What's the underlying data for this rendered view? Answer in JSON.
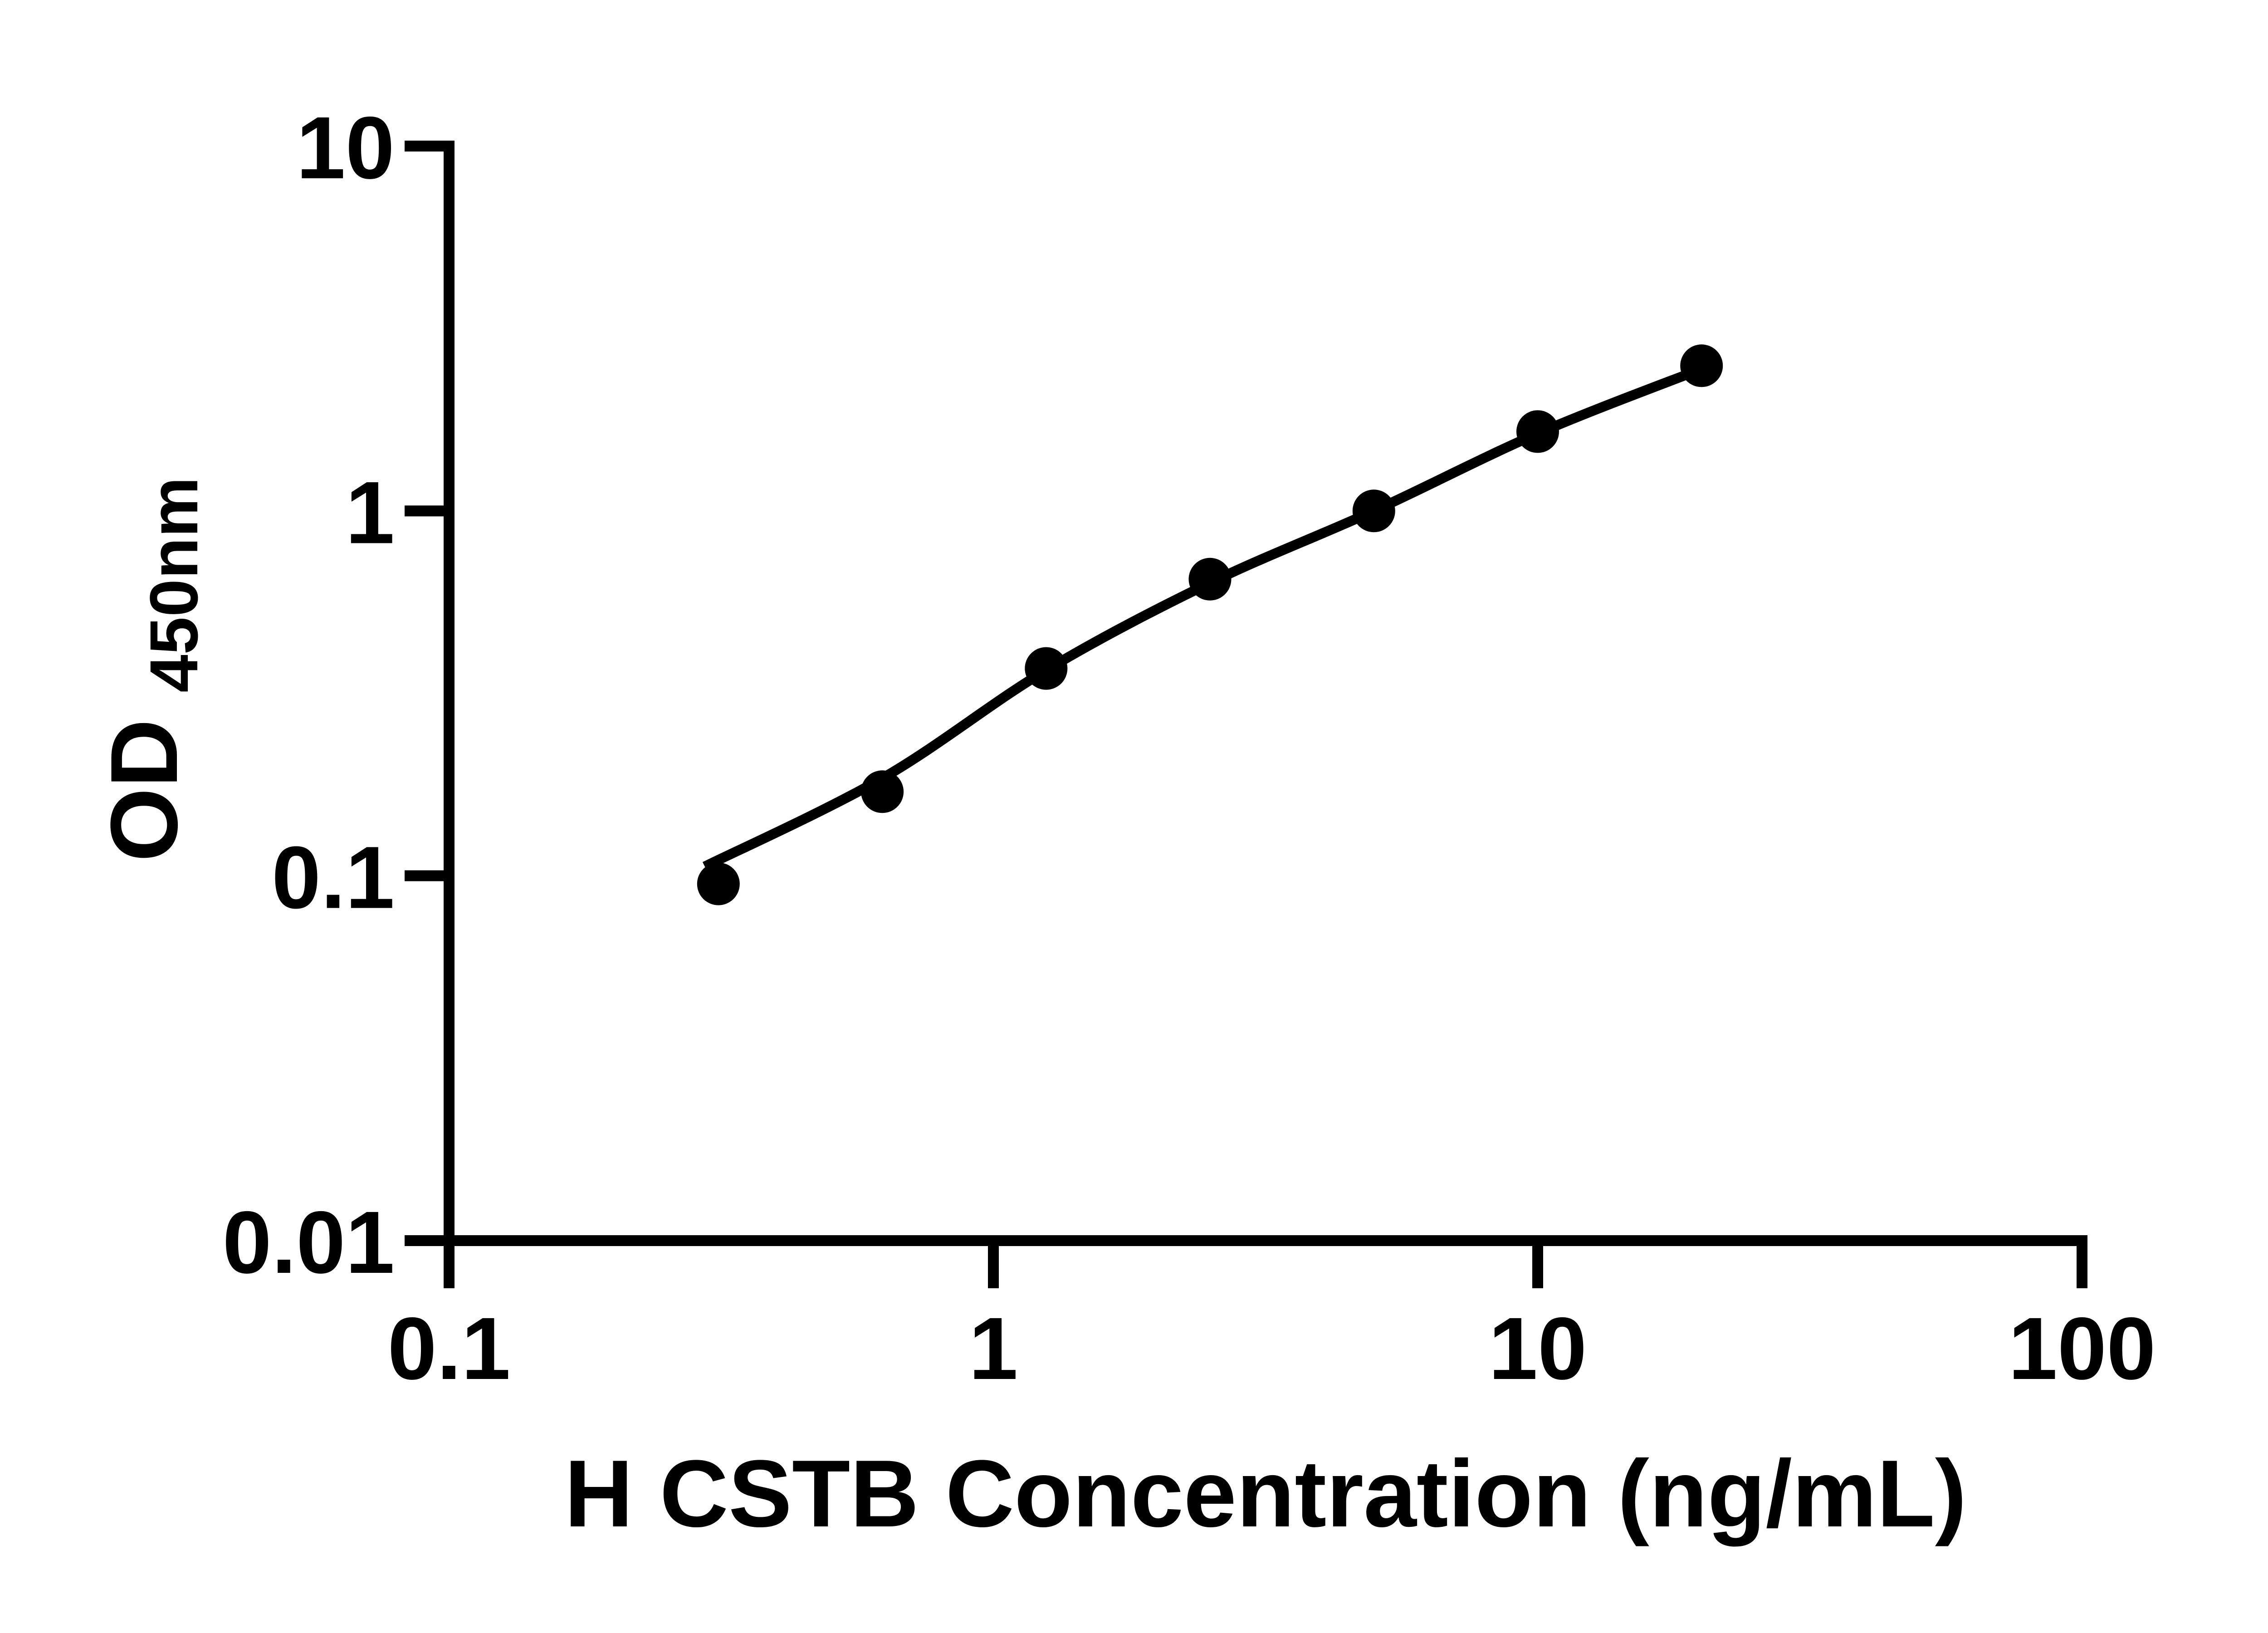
{
  "figure": {
    "background": "#ffffff",
    "ink_color": "#000000"
  },
  "chart_data": {
    "type": "scatter",
    "title": "",
    "xlabel": "H CSTB Concentration (ng/mL)",
    "ylabel_main": "OD",
    "ylabel_subscript": "450nm",
    "x_scale": "log",
    "y_scale": "log",
    "xlim": [
      0.1,
      100
    ],
    "ylim": [
      0.01,
      10
    ],
    "x_tick_values": [
      0.1,
      1,
      10,
      100
    ],
    "x_tick_labels": [
      "0.1",
      "1",
      "10",
      "100"
    ],
    "y_tick_values": [
      0.01,
      0.1,
      1,
      10
    ],
    "y_tick_labels": [
      "0.01",
      "0.1",
      "1",
      "10"
    ],
    "grid": false,
    "legend": false,
    "series": [
      {
        "name": "standard-points",
        "type": "scatter",
        "marker": "filled-circle",
        "color": "#000000",
        "x": [
          0.3125,
          0.625,
          1.25,
          2.5,
          5,
          10,
          20
        ],
        "y": [
          0.095,
          0.17,
          0.37,
          0.65,
          1.0,
          1.65,
          2.5
        ]
      },
      {
        "name": "fit-line",
        "type": "line",
        "color": "#000000",
        "x": [
          0.295,
          0.625,
          1.25,
          2.5,
          5,
          10,
          20
        ],
        "y": [
          0.106,
          0.185,
          0.366,
          0.635,
          1.0,
          1.63,
          2.45
        ]
      }
    ]
  }
}
